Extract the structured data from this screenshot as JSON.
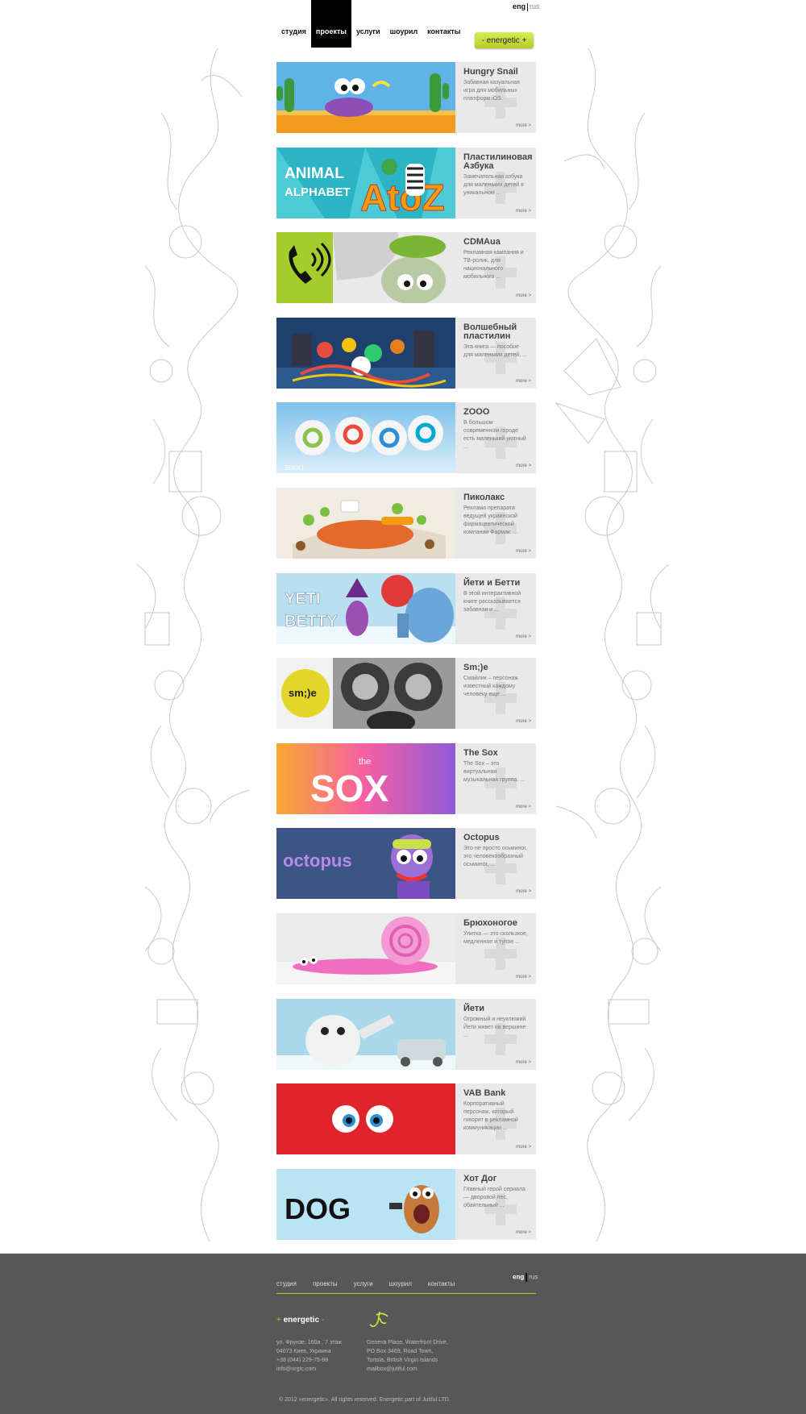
{
  "lang": {
    "active": "eng",
    "other": "rus"
  },
  "nav": [
    {
      "label": "студия",
      "active": false
    },
    {
      "label": "проекты",
      "active": true
    },
    {
      "label": "услуги",
      "active": false
    },
    {
      "label": "шоурил",
      "active": false
    },
    {
      "label": "контакты",
      "active": false
    }
  ],
  "brand": {
    "label": "- energetic +"
  },
  "projects": [
    {
      "title": "Hungry Snail",
      "desc": "Забавная казуальная игра для мобильных платформ iOS.",
      "more": "more >",
      "scene": "snail"
    },
    {
      "title": "Пластилиновая Азбука",
      "desc": "Замечательная азбука для маленьких детей в уникальном ...",
      "more": "more >",
      "scene": "alphabet"
    },
    {
      "title": "CDMAua",
      "desc": "Рекламная кампания и ТВ-ролик, для национального мобильного ...",
      "more": "more >",
      "scene": "cdma"
    },
    {
      "title": "Волшебный пластилин",
      "desc": "Эта книга — пособие для маленьких детей, ...",
      "more": "more >",
      "scene": "plasticine"
    },
    {
      "title": "ZOOO",
      "desc": "В большом современном городе есть маленький уютный ...",
      "more": "more >",
      "scene": "zooo"
    },
    {
      "title": "Пиколакс",
      "desc": "Реклама препарата ведущей украинской фармацевтической компании Фармак. ...",
      "more": "more >",
      "scene": "picolax"
    },
    {
      "title": "Йети и Бетти",
      "desc": "В этой интерактивной книге рассказывается забавная и ...",
      "more": "more >",
      "scene": "yeti_betty"
    },
    {
      "title": "Sm;)e",
      "desc": "Смайлик – персонаж известный каждому человеку еще ...",
      "more": "more >",
      "scene": "smile"
    },
    {
      "title": "The Sox",
      "desc": "The Sox – это виртуальная музыкальная группа. ...",
      "more": "more >",
      "scene": "sox"
    },
    {
      "title": "Octopus",
      "desc": "Это не просто осьминог, это человекообразный осьминог, ...",
      "more": "more >",
      "scene": "octopus"
    },
    {
      "title": "Брюхоногое",
      "desc": "Улитка — это скользкое, медленное и тупое ...",
      "more": "more >",
      "scene": "slug"
    },
    {
      "title": "Йети",
      "desc": "Огромный и неуклюжий Йети живет на вершине ...",
      "more": "more >",
      "scene": "yeti"
    },
    {
      "title": "VAB Bank",
      "desc": "Корпоративный персонаж, который говорит в рекламной коммуникации ...",
      "more": "more >",
      "scene": "vab"
    },
    {
      "title": "Хот Дог",
      "desc": "Главный герой сериала — дворовой пес, обаятельный ...",
      "more": "more >",
      "scene": "dog"
    }
  ],
  "thumb_text": {
    "alphabet_a": "ANIMAL",
    "alphabet_b": "ALPHABET",
    "alphabet_c": "AtoZ",
    "zooo": "ZOOO",
    "yeti_a": "YETI",
    "yeti_b": "BETTY",
    "smile": "sm;)e",
    "sox_a": "the",
    "sox_b": "SOX",
    "octopus": "octopus",
    "dog": "DOG"
  },
  "footer": {
    "nav": [
      "студия",
      "проекты",
      "услуги",
      "шоурил",
      "контакты"
    ],
    "lang": {
      "active": "eng",
      "other": "rus"
    },
    "logo": "energetic",
    "address1": [
      "ул. Фрунзе, 160а , 7 этаж",
      "04073 Киев, Украина",
      "+38 (044) 229-75-88",
      "info@nrgtc.com"
    ],
    "address2": [
      "Geneva Place, Waterfront Drive,",
      "PO Box 3469, Road Town,",
      "Tortola, British Virgin Islands",
      "mailbox@jutiful.com"
    ],
    "copyright": "© 2012 «energetic». All rights reserved. Energetic part of Jutiful LTD."
  },
  "colors": {
    "accent": "#b7cc2a",
    "footer_bg": "#575757",
    "info_bg": "#e9e9e9"
  }
}
